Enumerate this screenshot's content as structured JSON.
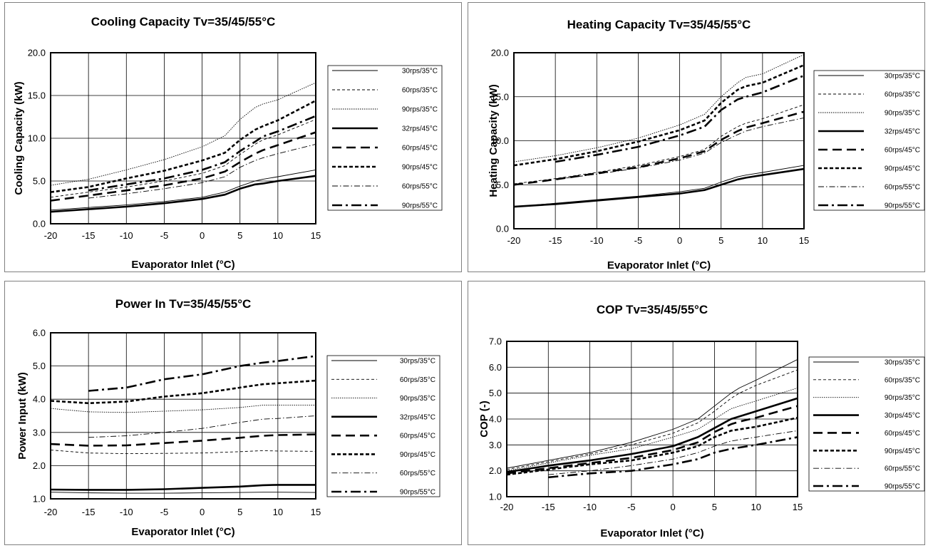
{
  "chart_data": [
    {
      "type": "line",
      "title": "Cooling Capacity Tv=35/45/55°C",
      "xlabel": "Evaporator Inlet (°C)",
      "ylabel": "Cooling Capacity (kW)",
      "xlim": [
        -20,
        15
      ],
      "ylim": [
        0,
        20
      ],
      "xticks": [
        "-20",
        "-15",
        "-10",
        "-5",
        "0",
        "5",
        "10",
        "15"
      ],
      "yticks": [
        "0.0",
        "5.0",
        "10.0",
        "15.0",
        "20.0"
      ],
      "grid": true,
      "legend": "right",
      "series": [
        {
          "name": "30rps/35°C",
          "style": "thin",
          "x": [
            -20,
            -15,
            -10,
            -5,
            0,
            3,
            5,
            7,
            8,
            10,
            15
          ],
          "y": [
            1.6,
            1.9,
            2.2,
            2.6,
            3.1,
            3.7,
            4.4,
            5.0,
            5.2,
            5.5,
            6.3
          ]
        },
        {
          "name": "60rps/35°C",
          "style": "dash-thin",
          "x": [
            -20,
            -15,
            -10,
            -5,
            0,
            3,
            5,
            7,
            8,
            10,
            15
          ],
          "y": [
            3.1,
            3.7,
            4.3,
            5.0,
            5.9,
            6.8,
            8.1,
            9.3,
            9.8,
            10.4,
            12.2
          ]
        },
        {
          "name": "90rps/35°C",
          "style": "dot-thin",
          "x": [
            -20,
            -15,
            -10,
            -5,
            0,
            3,
            5,
            7,
            8,
            10,
            15
          ],
          "y": [
            4.5,
            5.2,
            6.3,
            7.5,
            9.0,
            10.3,
            12.2,
            13.6,
            14.0,
            14.5,
            16.5
          ]
        },
        {
          "name": "32rps/45°C",
          "style": "thick",
          "x": [
            -20,
            -15,
            -10,
            -5,
            0,
            3,
            5,
            7,
            8,
            10,
            15
          ],
          "y": [
            1.4,
            1.7,
            2.0,
            2.4,
            2.9,
            3.4,
            4.1,
            4.6,
            4.7,
            5.0,
            5.6
          ]
        },
        {
          "name": "60rps/45°C",
          "style": "dash-thick",
          "x": [
            -20,
            -15,
            -10,
            -5,
            0,
            3,
            5,
            7,
            8,
            10,
            15
          ],
          "y": [
            2.7,
            3.3,
            3.9,
            4.5,
            5.3,
            6.1,
            7.2,
            8.2,
            8.6,
            9.2,
            10.7
          ]
        },
        {
          "name": "90rps/45°C",
          "style": "dot-thick",
          "x": [
            -20,
            -15,
            -10,
            -5,
            0,
            3,
            5,
            7,
            8,
            10,
            15
          ],
          "y": [
            3.7,
            4.3,
            5.3,
            6.2,
            7.4,
            8.3,
            9.8,
            11.0,
            11.4,
            12.1,
            14.4
          ]
        },
        {
          "name": "60rps/55°C",
          "style": "dashdot-thin",
          "x": [
            -15,
            -10,
            -5,
            0,
            3,
            5,
            7,
            8,
            10,
            15
          ],
          "y": [
            3.0,
            3.5,
            4.1,
            4.8,
            5.5,
            6.6,
            7.4,
            7.7,
            8.2,
            9.3
          ]
        },
        {
          "name": "90rps/55°C",
          "style": "dashdot-thick",
          "x": [
            -15,
            -10,
            -5,
            0,
            3,
            5,
            7,
            8,
            10,
            15
          ],
          "y": [
            3.9,
            4.6,
            5.3,
            6.3,
            7.2,
            8.5,
            9.6,
            10.2,
            10.8,
            12.6
          ]
        }
      ]
    },
    {
      "type": "line",
      "title": "Heating Capacity Tv=35/45/55°C",
      "xlabel": "Evaporator Inlet (°C)",
      "ylabel": "Heating Capacity (kW)",
      "xlim": [
        -20,
        15
      ],
      "ylim": [
        0,
        20
      ],
      "xticks": [
        "-20",
        "-15",
        "-10",
        "-5",
        "0",
        "5",
        "10",
        "15"
      ],
      "yticks": [
        "0.0",
        "5.0",
        "10.0",
        "15.0",
        "20.0"
      ],
      "grid": true,
      "legend": "right",
      "series": [
        {
          "name": "30rps/35°C",
          "style": "thin",
          "x": [
            -20,
            -15,
            -10,
            -5,
            0,
            3,
            5,
            7,
            8,
            10,
            15
          ],
          "y": [
            2.5,
            2.9,
            3.3,
            3.7,
            4.2,
            4.6,
            5.3,
            5.9,
            6.1,
            6.4,
            7.2
          ]
        },
        {
          "name": "60rps/35°C",
          "style": "dash-thin",
          "x": [
            -20,
            -15,
            -10,
            -5,
            0,
            3,
            5,
            7,
            8,
            10,
            15
          ],
          "y": [
            5.1,
            5.7,
            6.4,
            7.2,
            8.2,
            9.0,
            10.5,
            11.6,
            12.0,
            12.5,
            14.1
          ]
        },
        {
          "name": "90rps/35°C",
          "style": "dot-thin",
          "x": [
            -20,
            -15,
            -10,
            -5,
            0,
            3,
            5,
            7,
            8,
            10,
            15
          ],
          "y": [
            7.6,
            8.3,
            9.2,
            10.3,
            11.8,
            13.0,
            15.0,
            16.6,
            17.2,
            17.6,
            19.8
          ]
        },
        {
          "name": "32rps/45°C",
          "style": "thick",
          "x": [
            -20,
            -15,
            -10,
            -5,
            0,
            3,
            5,
            7,
            8,
            10,
            15
          ],
          "y": [
            2.5,
            2.8,
            3.2,
            3.6,
            4.0,
            4.4,
            5.0,
            5.6,
            5.8,
            6.1,
            6.8
          ]
        },
        {
          "name": "60rps/45°C",
          "style": "dash-thick",
          "x": [
            -20,
            -15,
            -10,
            -5,
            0,
            3,
            5,
            7,
            8,
            10,
            15
          ],
          "y": [
            5.0,
            5.6,
            6.3,
            7.0,
            8.0,
            8.8,
            10.1,
            11.1,
            11.5,
            12.0,
            13.3
          ]
        },
        {
          "name": "90rps/45°C",
          "style": "dot-thick",
          "x": [
            -20,
            -15,
            -10,
            -5,
            0,
            3,
            5,
            7,
            8,
            10,
            15
          ],
          "y": [
            7.2,
            7.9,
            8.8,
            9.9,
            11.2,
            12.3,
            14.3,
            15.8,
            16.2,
            16.6,
            18.6
          ]
        },
        {
          "name": "60rps/55°C",
          "style": "dashdot-thin",
          "x": [
            -15,
            -10,
            -5,
            0,
            3,
            5,
            7,
            8,
            10,
            15
          ],
          "y": [
            5.6,
            6.2,
            6.9,
            7.8,
            8.6,
            9.8,
            10.7,
            11.1,
            11.6,
            12.6
          ]
        },
        {
          "name": "90rps/55°C",
          "style": "dashdot-thick",
          "x": [
            -15,
            -10,
            -5,
            0,
            3,
            5,
            7,
            8,
            10,
            15
          ],
          "y": [
            7.6,
            8.4,
            9.3,
            10.6,
            11.6,
            13.5,
            14.7,
            15.0,
            15.5,
            17.4
          ]
        }
      ]
    },
    {
      "type": "line",
      "title": "Power In Tv=35/45/55°C",
      "xlabel": "Evaporator Inlet (°C)",
      "ylabel": "Power Input (kW)",
      "xlim": [
        -20,
        15
      ],
      "ylim": [
        1,
        6
      ],
      "xticks": [
        "-20",
        "-15",
        "-10",
        "-5",
        "0",
        "5",
        "10",
        "15"
      ],
      "yticks": [
        "1.0",
        "2.0",
        "3.0",
        "4.0",
        "5.0",
        "6.0"
      ],
      "grid": true,
      "legend": "right",
      "series": [
        {
          "name": "30rps/35°C",
          "style": "thin",
          "x": [
            -20,
            -15,
            -10,
            -5,
            0,
            5,
            8,
            10,
            15
          ],
          "y": [
            1.2,
            1.18,
            1.17,
            1.17,
            1.18,
            1.19,
            1.2,
            1.2,
            1.19
          ]
        },
        {
          "name": "60rps/35°C",
          "style": "dash-thin",
          "x": [
            -20,
            -15,
            -10,
            -5,
            0,
            5,
            8,
            10,
            15
          ],
          "y": [
            2.47,
            2.38,
            2.36,
            2.37,
            2.38,
            2.42,
            2.45,
            2.44,
            2.43
          ]
        },
        {
          "name": "90rps/35°C",
          "style": "dot-thin",
          "x": [
            -20,
            -15,
            -10,
            -5,
            0,
            5,
            8,
            10,
            15
          ],
          "y": [
            3.72,
            3.62,
            3.6,
            3.64,
            3.68,
            3.75,
            3.82,
            3.82,
            3.82
          ]
        },
        {
          "name": "32rps/45°C",
          "style": "thick",
          "x": [
            -20,
            -15,
            -10,
            -5,
            0,
            5,
            8,
            10,
            15
          ],
          "y": [
            1.28,
            1.27,
            1.27,
            1.29,
            1.33,
            1.37,
            1.41,
            1.42,
            1.42
          ]
        },
        {
          "name": "60rps/45°C",
          "style": "dash-thick",
          "x": [
            -20,
            -15,
            -10,
            -5,
            0,
            5,
            8,
            10,
            15
          ],
          "y": [
            2.65,
            2.6,
            2.61,
            2.68,
            2.75,
            2.84,
            2.9,
            2.92,
            2.94
          ]
        },
        {
          "name": "90rps/45°C",
          "style": "dot-thick",
          "x": [
            -20,
            -15,
            -10,
            -5,
            0,
            5,
            8,
            10,
            15
          ],
          "y": [
            3.95,
            3.88,
            3.93,
            4.08,
            4.18,
            4.35,
            4.45,
            4.48,
            4.56
          ]
        },
        {
          "name": "60rps/55°C",
          "style": "dashdot-thin",
          "x": [
            -15,
            -10,
            -5,
            0,
            5,
            8,
            10,
            15
          ],
          "y": [
            2.85,
            2.9,
            3.0,
            3.12,
            3.3,
            3.4,
            3.42,
            3.5
          ]
        },
        {
          "name": "90rps/55°C",
          "style": "dashdot-thick",
          "x": [
            -15,
            -10,
            -5,
            0,
            5,
            8,
            10,
            15
          ],
          "y": [
            4.25,
            4.35,
            4.6,
            4.75,
            5.0,
            5.1,
            5.15,
            5.3
          ]
        }
      ]
    },
    {
      "type": "line",
      "title": "COP Tv=35/45/55°C",
      "xlabel": "Evaporator Inlet (°C)",
      "ylabel": "COP (-)",
      "xlim": [
        -20,
        15
      ],
      "ylim": [
        1,
        7
      ],
      "xticks": [
        "-20",
        "-15",
        "-10",
        "-5",
        "0",
        "5",
        "10",
        "15"
      ],
      "yticks": [
        "1.0",
        "2.0",
        "3.0",
        "4.0",
        "5.0",
        "6.0",
        "7.0"
      ],
      "grid": true,
      "legend": "right",
      "series": [
        {
          "name": "30rps/35°C",
          "style": "thin",
          "x": [
            -20,
            -15,
            -10,
            -5,
            0,
            3,
            5,
            7,
            8,
            10,
            15
          ],
          "y": [
            2.1,
            2.4,
            2.7,
            3.1,
            3.6,
            4.0,
            4.5,
            5.0,
            5.2,
            5.5,
            6.3
          ]
        },
        {
          "name": "60rps/35°C",
          "style": "dash-thin",
          "x": [
            -20,
            -15,
            -10,
            -5,
            0,
            3,
            5,
            7,
            8,
            10,
            15
          ],
          "y": [
            2.05,
            2.35,
            2.65,
            3.0,
            3.45,
            3.85,
            4.3,
            4.8,
            5.0,
            5.3,
            5.9
          ]
        },
        {
          "name": "90rps/35°C",
          "style": "dot-thin",
          "x": [
            -20,
            -15,
            -10,
            -5,
            0,
            3,
            5,
            7,
            8,
            10,
            15
          ],
          "y": [
            2.0,
            2.3,
            2.6,
            2.85,
            3.3,
            3.6,
            4.0,
            4.4,
            4.5,
            4.7,
            5.2
          ]
        },
        {
          "name": "30rps/45°C",
          "style": "thick",
          "x": [
            -20,
            -15,
            -10,
            -5,
            0,
            3,
            5,
            7,
            8,
            10,
            15
          ],
          "y": [
            1.95,
            2.2,
            2.4,
            2.65,
            2.95,
            3.3,
            3.65,
            4.0,
            4.1,
            4.3,
            4.8
          ]
        },
        {
          "name": "60rps/45°C",
          "style": "dash-thick",
          "x": [
            -20,
            -15,
            -10,
            -5,
            0,
            3,
            5,
            7,
            8,
            10,
            15
          ],
          "y": [
            1.9,
            2.1,
            2.3,
            2.5,
            2.8,
            3.1,
            3.5,
            3.8,
            3.9,
            4.05,
            4.5
          ]
        },
        {
          "name": "90rps/45°C",
          "style": "dot-thick",
          "x": [
            -20,
            -15,
            -10,
            -5,
            0,
            3,
            5,
            7,
            8,
            10,
            15
          ],
          "y": [
            1.85,
            2.05,
            2.25,
            2.4,
            2.7,
            2.95,
            3.3,
            3.55,
            3.6,
            3.7,
            4.05
          ]
        },
        {
          "name": "60rps/55°C",
          "style": "dashdot-thin",
          "x": [
            -15,
            -10,
            -5,
            0,
            3,
            5,
            7,
            8,
            10,
            15
          ],
          "y": [
            1.85,
            2.0,
            2.2,
            2.45,
            2.7,
            2.95,
            3.15,
            3.2,
            3.3,
            3.55
          ]
        },
        {
          "name": "90rps/55°C",
          "style": "dashdot-thick",
          "x": [
            -15,
            -10,
            -5,
            0,
            3,
            5,
            7,
            8,
            10,
            15
          ],
          "y": [
            1.75,
            1.9,
            2.0,
            2.25,
            2.45,
            2.7,
            2.85,
            2.9,
            3.0,
            3.3
          ]
        }
      ]
    }
  ]
}
